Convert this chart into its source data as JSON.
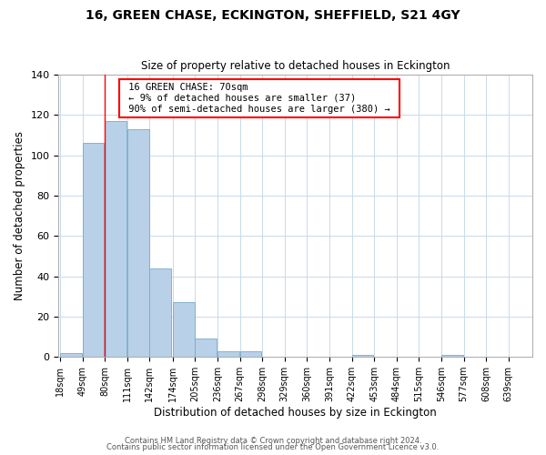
{
  "title": "16, GREEN CHASE, ECKINGTON, SHEFFIELD, S21 4GY",
  "subtitle": "Size of property relative to detached houses in Eckington",
  "xlabel": "Distribution of detached houses by size in Eckington",
  "ylabel": "Number of detached properties",
  "bar_values": [
    2,
    106,
    117,
    113,
    44,
    27,
    9,
    3,
    3,
    0,
    0,
    0,
    0,
    1,
    0,
    0,
    0,
    1,
    0,
    0,
    0
  ],
  "bin_labels": [
    "18sqm",
    "49sqm",
    "80sqm",
    "111sqm",
    "142sqm",
    "174sqm",
    "205sqm",
    "236sqm",
    "267sqm",
    "298sqm",
    "329sqm",
    "360sqm",
    "391sqm",
    "422sqm",
    "453sqm",
    "484sqm",
    "515sqm",
    "546sqm",
    "577sqm",
    "608sqm",
    "639sqm"
  ],
  "bin_edges": [
    18,
    49,
    80,
    111,
    142,
    174,
    205,
    236,
    267,
    298,
    329,
    360,
    391,
    422,
    453,
    484,
    515,
    546,
    577,
    608,
    639
  ],
  "bar_color": "#b8d0e8",
  "bar_edge_color": "#7aaac8",
  "ylim": [
    0,
    140
  ],
  "yticks": [
    0,
    20,
    40,
    60,
    80,
    100,
    120,
    140
  ],
  "red_line_x": 80,
  "annotation_title": "16 GREEN CHASE: 70sqm",
  "annotation_line1": "← 9% of detached houses are smaller (37)",
  "annotation_line2": "90% of semi-detached houses are larger (380) →",
  "footer1": "Contains HM Land Registry data © Crown copyright and database right 2024.",
  "footer2": "Contains public sector information licensed under the Open Government Licence v3.0.",
  "background_color": "#ffffff",
  "grid_color": "#c8daea"
}
